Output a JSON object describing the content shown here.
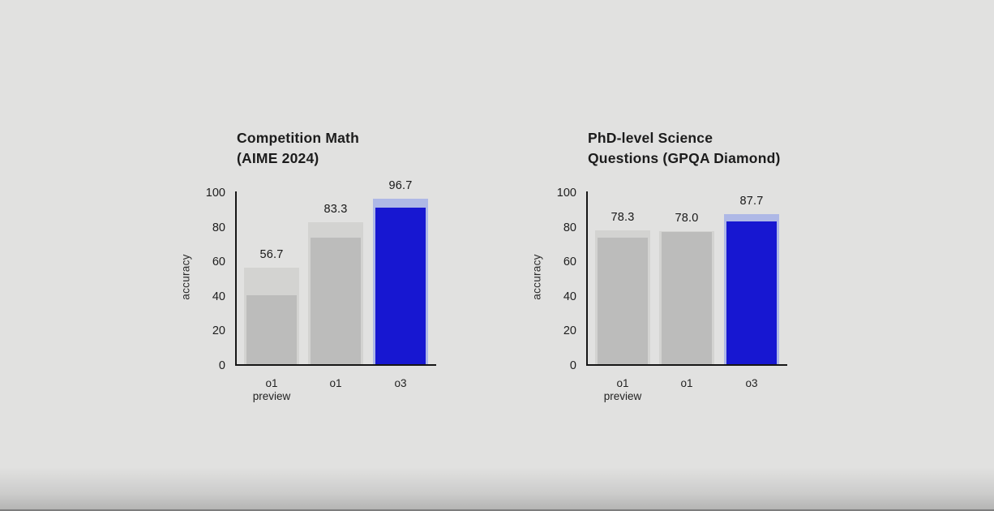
{
  "slide": {
    "background": "#e1e1e0",
    "text_color": "#1c1c1c"
  },
  "colors": {
    "slide_bg": "#e1e1e0",
    "text": "#1c1c1c",
    "axis": "#161616",
    "bar_gray": "#bcbcbb",
    "bar_gray_light": "#d3d3d1",
    "bar_blue": "#1717d1",
    "bar_blue_light": "#aeb8e6"
  },
  "chart_data": [
    {
      "type": "bar",
      "title_lines": [
        "Competition Math",
        "(AIME 2024)"
      ],
      "ylabel": "accuracy",
      "ylim": [
        0,
        100
      ],
      "yticks": [
        0,
        20,
        40,
        60,
        80,
        100
      ],
      "grid": false,
      "legend": false,
      "categories": [
        "o1 preview",
        "o1",
        "o3"
      ],
      "bars": [
        {
          "category_lines": [
            "o1",
            "preview"
          ],
          "label": "56.7",
          "total": 56.7,
          "solid": 41.0,
          "highlight": false
        },
        {
          "category_lines": [
            "o1"
          ],
          "label": "83.3",
          "total": 83.3,
          "solid": 74.0,
          "highlight": false
        },
        {
          "category_lines": [
            "o3"
          ],
          "label": "96.7",
          "total": 96.7,
          "solid": 91.5,
          "highlight": true
        }
      ]
    },
    {
      "type": "bar",
      "title_lines": [
        "PhD-level Science",
        "Questions (GPQA Diamond)"
      ],
      "ylabel": "accuracy",
      "ylim": [
        0,
        100
      ],
      "yticks": [
        0,
        20,
        40,
        60,
        80,
        100
      ],
      "grid": false,
      "legend": false,
      "categories": [
        "o1 preview",
        "o1",
        "o3"
      ],
      "bars": [
        {
          "category_lines": [
            "o1",
            "preview"
          ],
          "label": "78.3",
          "total": 78.3,
          "solid": 74.0,
          "highlight": false
        },
        {
          "category_lines": [
            "o1"
          ],
          "label": "78.0",
          "total": 78.0,
          "solid": 77.5,
          "highlight": false
        },
        {
          "category_lines": [
            "o3"
          ],
          "label": "87.7",
          "total": 87.7,
          "solid": 83.5,
          "highlight": true
        }
      ]
    }
  ]
}
